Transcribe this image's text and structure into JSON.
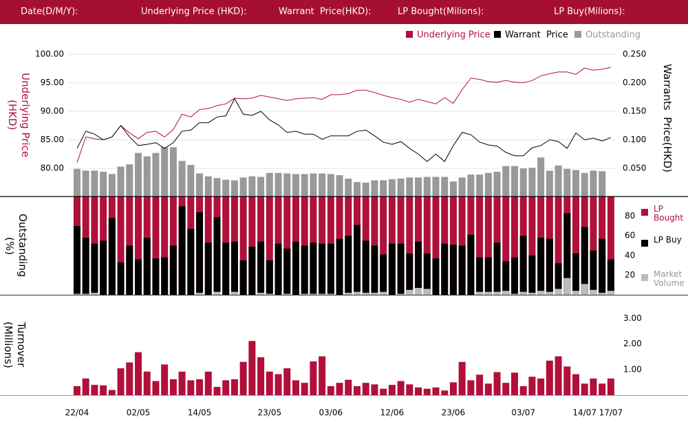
{
  "header": {
    "fields": [
      "Date(D/M/Y):",
      "Underlying Price (HKD):",
      "Warrant  Price(HKD):",
      "LP Bought(Milions):",
      "LP Buy(Milions):"
    ]
  },
  "chart_data": [
    {
      "type": "line",
      "y_title": "Underlying Price (HKD)",
      "y2_title": "Warrants  Price(HKD)",
      "ylim": [
        75,
        105
      ],
      "yticks": [
        {
          "value": 80,
          "label": "80.00"
        },
        {
          "value": 85,
          "label": "85.00"
        },
        {
          "value": 90,
          "label": "90.00"
        },
        {
          "value": 95,
          "label": "95.00"
        },
        {
          "value": 100,
          "label": "100.00"
        }
      ],
      "y2lim": [
        0,
        0.3
      ],
      "y2ticks": [
        {
          "value": 0.05,
          "label": "0.050"
        },
        {
          "value": 0.1,
          "label": "0.100"
        },
        {
          "value": 0.15,
          "label": "0.150"
        },
        {
          "value": 0.2,
          "label": "0.200"
        },
        {
          "value": 0.25,
          "label": "0.250"
        }
      ],
      "grid": true,
      "series": [
        {
          "name": "Underlying Price",
          "color": "#b0103a",
          "values": [
            81,
            85.5,
            85.2,
            85,
            85.5,
            87.5,
            86.2,
            85.2,
            86.3,
            86.5,
            85.5,
            86.8,
            89.5,
            89,
            90.3,
            90.5,
            91,
            91.3,
            92.3,
            92.2,
            92.3,
            92.8,
            92.5,
            92.2,
            91.9,
            92.2,
            92.3,
            92.4,
            92.1,
            92.9,
            92.9,
            93.1,
            93.7,
            93.7,
            93.3,
            92.8,
            92.4,
            92.1,
            91.6,
            92.1,
            91.7,
            91.3,
            92.4,
            91.4,
            93.8,
            95.8,
            95.6,
            95.2,
            95.1,
            95.4,
            95.1,
            95,
            95.4,
            96.2,
            96.6,
            96.9,
            96.9,
            96.5,
            97.6,
            97.2,
            97.4,
            97.7
          ]
        },
        {
          "name": "Warrant  Price",
          "color": "#000000",
          "axis": "y2",
          "values": [
            0.085,
            0.115,
            0.11,
            0.1,
            0.105,
            0.125,
            0.105,
            0.09,
            0.092,
            0.095,
            0.085,
            0.095,
            0.115,
            0.117,
            0.13,
            0.13,
            0.14,
            0.142,
            0.172,
            0.145,
            0.143,
            0.15,
            0.135,
            0.126,
            0.113,
            0.115,
            0.11,
            0.11,
            0.101,
            0.107,
            0.107,
            0.107,
            0.115,
            0.117,
            0.107,
            0.096,
            0.092,
            0.097,
            0.085,
            0.075,
            0.062,
            0.075,
            0.062,
            0.09,
            0.113,
            0.109,
            0.096,
            0.091,
            0.089,
            0.078,
            0.072,
            0.072,
            0.086,
            0.09,
            0.1,
            0.097,
            0.085,
            0.112,
            0.1,
            0.103,
            0.098,
            0.104
          ]
        },
        {
          "name": "Outstanding",
          "color": "#999999",
          "axis": "y2",
          "type": "bar",
          "values": [
            0.049,
            0.046,
            0.046,
            0.044,
            0.04,
            0.053,
            0.057,
            0.077,
            0.071,
            0.077,
            0.087,
            0.087,
            0.063,
            0.056,
            0.041,
            0.036,
            0.033,
            0.03,
            0.029,
            0.034,
            0.036,
            0.035,
            0.042,
            0.042,
            0.041,
            0.04,
            0.04,
            0.041,
            0.041,
            0.04,
            0.038,
            0.032,
            0.026,
            0.025,
            0.029,
            0.029,
            0.031,
            0.032,
            0.034,
            0.034,
            0.035,
            0.035,
            0.035,
            0.027,
            0.034,
            0.039,
            0.039,
            0.042,
            0.044,
            0.054,
            0.054,
            0.05,
            0.051,
            0.069,
            0.046,
            0.055,
            0.049,
            0.047,
            0.042,
            0.046,
            0.045,
            null
          ]
        }
      ]
    },
    {
      "type": "bar",
      "y_title": "Outstanding (%)",
      "ylim": [
        0,
        100
      ],
      "yticks": [
        20,
        40,
        60,
        80
      ],
      "grid": false,
      "series": [
        {
          "name": "LP Bought",
          "color": "#b0103a",
          "values": [
            100,
            100,
            100,
            100,
            100,
            100,
            100,
            100,
            100,
            100,
            100,
            100,
            100,
            100,
            100,
            100,
            100,
            100,
            100,
            100,
            100,
            100,
            100,
            100,
            100,
            100,
            100,
            100,
            100,
            100,
            100,
            100,
            100,
            100,
            100,
            100,
            100,
            100,
            100,
            100,
            100,
            100,
            100,
            100,
            100,
            100,
            100,
            100,
            100,
            100,
            100,
            100,
            100,
            100,
            100,
            100,
            100,
            100,
            100,
            100,
            100,
            100
          ]
        },
        {
          "name": "LP Buy",
          "color": "#000000",
          "values": [
            70,
            58,
            52,
            55,
            78,
            33,
            50,
            36,
            58,
            37,
            38,
            50,
            90,
            67,
            84,
            53,
            79,
            53,
            54,
            35,
            49,
            54,
            35,
            52,
            47,
            54,
            50,
            53,
            52,
            52,
            57,
            60,
            71,
            55,
            50,
            41,
            52,
            52,
            42,
            54,
            42,
            37,
            52,
            51,
            50,
            61,
            38,
            38,
            53,
            34,
            38,
            60,
            40,
            58,
            57,
            32,
            83,
            42,
            69,
            45,
            57,
            36
          ]
        },
        {
          "name": "Market Volume",
          "color": "#bbbbbb",
          "values": [
            1,
            1,
            2,
            0,
            0,
            0,
            0,
            0,
            0,
            0,
            0,
            0,
            0,
            0,
            2,
            0,
            3,
            0,
            3,
            0,
            0,
            2,
            1,
            0,
            1,
            0,
            1,
            1,
            1,
            1,
            0,
            2,
            3,
            2,
            2,
            3,
            0,
            1,
            5,
            7,
            6,
            0,
            0,
            0,
            0,
            0,
            3,
            3,
            3,
            4,
            1,
            3,
            2,
            4,
            3,
            6,
            17,
            4,
            11,
            5,
            2,
            4
          ]
        }
      ]
    },
    {
      "type": "bar",
      "y_title": "Turnover (Millions)",
      "ylim": [
        0,
        3.5
      ],
      "yticks": [
        {
          "value": 1,
          "label": "1.00"
        },
        {
          "value": 2,
          "label": "2.00"
        },
        {
          "value": 3,
          "label": "3.00"
        }
      ],
      "grid": false,
      "color": "#b0103a",
      "categories": [
        "22/04",
        null,
        null,
        null,
        null,
        null,
        null,
        "02/05",
        null,
        null,
        null,
        null,
        null,
        null,
        "14/05",
        null,
        null,
        null,
        null,
        null,
        null,
        null,
        "23/05",
        null,
        null,
        null,
        null,
        null,
        null,
        "03/06",
        null,
        null,
        null,
        null,
        null,
        null,
        "12/06",
        null,
        null,
        null,
        null,
        null,
        null,
        "23/06",
        null,
        null,
        null,
        null,
        null,
        null,
        null,
        "03/07",
        null,
        null,
        null,
        null,
        null,
        null,
        "14/07",
        null,
        null,
        "17/07"
      ],
      "values": [
        0.35,
        0.65,
        0.4,
        0.38,
        0.2,
        1.05,
        1.28,
        1.68,
        0.92,
        0.55,
        1.2,
        0.62,
        0.92,
        0.58,
        0.62,
        0.92,
        0.32,
        0.58,
        0.62,
        1.3,
        2.12,
        1.48,
        0.92,
        0.82,
        1.05,
        0.58,
        0.48,
        1.32,
        1.52,
        0.35,
        0.48,
        0.6,
        0.35,
        0.48,
        0.42,
        0.25,
        0.4,
        0.55,
        0.42,
        0.3,
        0.25,
        0.3,
        0.18,
        0.5,
        1.3,
        0.58,
        0.8,
        0.45,
        0.9,
        0.48,
        0.88,
        0.35,
        0.72,
        0.65,
        1.35,
        1.52,
        1.12,
        0.82,
        0.45,
        0.65,
        0.45,
        0.65
      ]
    }
  ]
}
